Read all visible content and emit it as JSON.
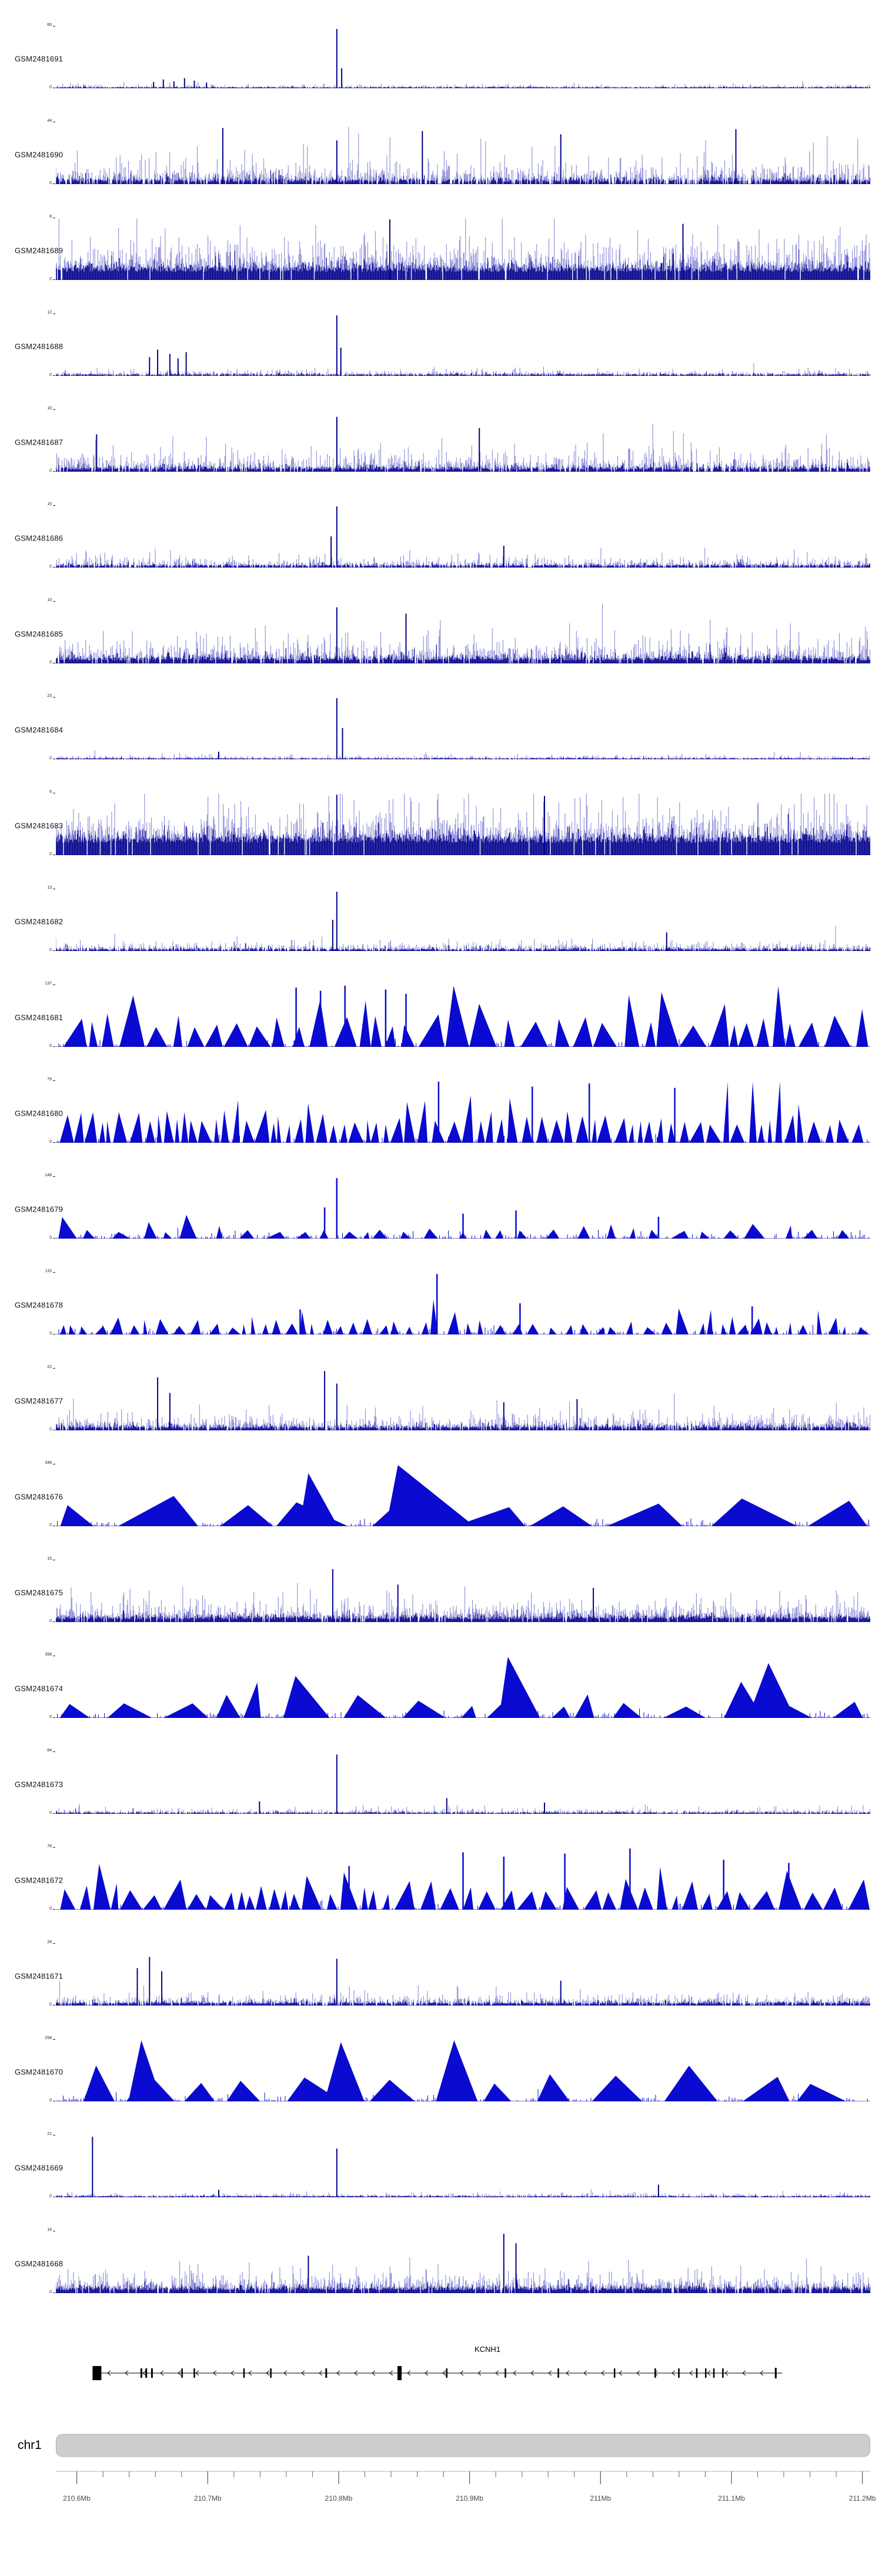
{
  "colors": {
    "spike_light": "#8C8CD8",
    "spike_dark": "#00008B",
    "peak_fill": "#0A0AD0",
    "gene": "#000000",
    "ideogram_fill": "#CDCDCD",
    "ideogram_border": "#B2B2B2",
    "axis_tick": "#666666",
    "axis_text": "#4A4A4A",
    "background": "#FFFFFF"
  },
  "chromosome": {
    "label": "chr1"
  },
  "chart_data": {
    "type": "area",
    "subtype": "genome-coverage-tracks",
    "title": "",
    "axis": {
      "unit": "Mb",
      "start_mb": 210.584,
      "end_mb": 211.206,
      "minor_step_mb": 0.02,
      "major_ticks_mb": [
        210.6,
        210.7,
        210.8,
        210.9,
        211.0,
        211.1,
        211.2
      ],
      "tick_labels": [
        "210.6Mb",
        "210.7Mb",
        "210.8Mb",
        "210.9Mb",
        "211Mb",
        "211.1Mb",
        "211.2Mb"
      ]
    },
    "gene_track": {
      "gene": "KCNH1",
      "strand": "-",
      "span_frac": [
        0.0505,
        0.892
      ],
      "exons": [
        {
          "f": 0.0505,
          "w": 15,
          "h": 24
        },
        {
          "f": 0.105,
          "w": 3,
          "h": 16
        },
        {
          "f": 0.111,
          "w": 3,
          "h": 16
        },
        {
          "f": 0.118,
          "w": 3,
          "h": 16
        },
        {
          "f": 0.155,
          "w": 2.5,
          "h": 16
        },
        {
          "f": 0.17,
          "w": 2.5,
          "h": 16
        },
        {
          "f": 0.231,
          "w": 2.5,
          "h": 16
        },
        {
          "f": 0.264,
          "w": 2.5,
          "h": 16
        },
        {
          "f": 0.332,
          "w": 3,
          "h": 16
        },
        {
          "f": 0.422,
          "w": 7,
          "h": 24
        },
        {
          "f": 0.48,
          "w": 2.5,
          "h": 16
        },
        {
          "f": 0.552,
          "w": 2.5,
          "h": 16
        },
        {
          "f": 0.617,
          "w": 2.5,
          "h": 16
        },
        {
          "f": 0.686,
          "w": 2.5,
          "h": 16
        },
        {
          "f": 0.736,
          "w": 2.5,
          "h": 16
        },
        {
          "f": 0.765,
          "w": 2.5,
          "h": 16
        },
        {
          "f": 0.787,
          "w": 2.5,
          "h": 16
        },
        {
          "f": 0.798,
          "w": 2.5,
          "h": 16
        },
        {
          "f": 0.808,
          "w": 2.5,
          "h": 16
        },
        {
          "f": 0.819,
          "w": 2.5,
          "h": 16
        },
        {
          "f": 0.884,
          "w": 3,
          "h": 18
        }
      ]
    },
    "tracks": [
      {
        "label": "GSM2481691",
        "ymax": 60,
        "ymin": 0,
        "style": "spikes",
        "seed": 1,
        "density": 0.8,
        "lbase": 0.012,
        "lvar": 0.03,
        "dbase": 0.008,
        "dvar": 0.015,
        "extras": [
          {
            "f": 0.345,
            "h": 0.95
          },
          {
            "f": 0.351,
            "h": 0.32
          },
          {
            "f": 0.12,
            "h": 0.1
          },
          {
            "f": 0.132,
            "h": 0.14
          },
          {
            "f": 0.145,
            "h": 0.11
          },
          {
            "f": 0.158,
            "h": 0.16
          },
          {
            "f": 0.17,
            "h": 0.12
          },
          {
            "f": 0.185,
            "h": 0.09
          }
        ]
      },
      {
        "label": "GSM2481690",
        "ymax": 44,
        "ymin": 0,
        "style": "spikes",
        "seed": 2,
        "density": 0.8,
        "lbase": 0.06,
        "lvar": 0.22,
        "dbase": 0.035,
        "dvar": 0.07,
        "extras": [
          {
            "f": 0.205,
            "h": 0.9
          },
          {
            "f": 0.345,
            "h": 0.7
          },
          {
            "f": 0.45,
            "h": 0.85
          },
          {
            "f": 0.62,
            "h": 0.8
          },
          {
            "f": 0.835,
            "h": 0.88
          }
        ]
      },
      {
        "label": "GSM2481689",
        "ymax": 8,
        "ymin": 0,
        "style": "spikes",
        "seed": 3,
        "density": 0.95,
        "lbase": 0.18,
        "lvar": 0.3,
        "dbase": 0.13,
        "dvar": 0.14,
        "extras": [
          {
            "f": 0.41,
            "h": 0.97
          },
          {
            "f": 0.77,
            "h": 0.9
          }
        ]
      },
      {
        "label": "GSM2481688",
        "ymax": 12,
        "ymin": 0,
        "style": "spikes",
        "seed": 4,
        "density": 0.8,
        "lbase": 0.018,
        "lvar": 0.05,
        "dbase": 0.012,
        "dvar": 0.025,
        "extras": [
          {
            "f": 0.345,
            "h": 0.97
          },
          {
            "f": 0.35,
            "h": 0.45
          },
          {
            "f": 0.115,
            "h": 0.3
          },
          {
            "f": 0.125,
            "h": 0.42
          },
          {
            "f": 0.14,
            "h": 0.35
          },
          {
            "f": 0.15,
            "h": 0.28
          },
          {
            "f": 0.16,
            "h": 0.38
          }
        ]
      },
      {
        "label": "GSM2481687",
        "ymax": 10,
        "ymin": 0,
        "style": "spikes",
        "seed": 5,
        "density": 0.85,
        "lbase": 0.05,
        "lvar": 0.18,
        "dbase": 0.03,
        "dvar": 0.07,
        "extras": [
          {
            "f": 0.345,
            "h": 0.88
          },
          {
            "f": 0.05,
            "h": 0.6
          },
          {
            "f": 0.52,
            "h": 0.7
          }
        ]
      },
      {
        "label": "GSM2481686",
        "ymax": 15,
        "ymin": 0,
        "style": "spikes",
        "seed": 6,
        "density": 0.8,
        "lbase": 0.03,
        "lvar": 0.1,
        "dbase": 0.02,
        "dvar": 0.04,
        "extras": [
          {
            "f": 0.345,
            "h": 0.98
          },
          {
            "f": 0.338,
            "h": 0.5
          },
          {
            "f": 0.55,
            "h": 0.35
          }
        ]
      },
      {
        "label": "GSM2481685",
        "ymax": 10,
        "ymin": 0,
        "style": "spikes",
        "seed": 7,
        "density": 0.9,
        "lbase": 0.07,
        "lvar": 0.22,
        "dbase": 0.045,
        "dvar": 0.09,
        "extras": [
          {
            "f": 0.345,
            "h": 0.9
          },
          {
            "f": 0.43,
            "h": 0.8
          }
        ]
      },
      {
        "label": "GSM2481684",
        "ymax": 23,
        "ymin": 0,
        "style": "spikes",
        "seed": 8,
        "density": 0.8,
        "lbase": 0.012,
        "lvar": 0.03,
        "dbase": 0.008,
        "dvar": 0.016,
        "extras": [
          {
            "f": 0.345,
            "h": 0.98
          },
          {
            "f": 0.352,
            "h": 0.5
          },
          {
            "f": 0.2,
            "h": 0.12
          }
        ]
      },
      {
        "label": "GSM2481683",
        "ymax": 6,
        "ymin": 0,
        "style": "spikes",
        "seed": 9,
        "density": 0.97,
        "lbase": 0.25,
        "lvar": 0.32,
        "dbase": 0.2,
        "dvar": 0.18,
        "extras": [
          {
            "f": 0.345,
            "h": 0.97
          },
          {
            "f": 0.6,
            "h": 0.95
          }
        ]
      },
      {
        "label": "GSM2481682",
        "ymax": 13,
        "ymin": 0,
        "style": "spikes",
        "seed": 10,
        "density": 0.8,
        "lbase": 0.025,
        "lvar": 0.08,
        "dbase": 0.015,
        "dvar": 0.035,
        "extras": [
          {
            "f": 0.345,
            "h": 0.95
          },
          {
            "f": 0.34,
            "h": 0.5
          },
          {
            "f": 0.75,
            "h": 0.3
          }
        ]
      },
      {
        "label": "GSM2481681",
        "ymax": 137,
        "ymin": 0,
        "style": "peaks",
        "seed": 11,
        "gmin": 0,
        "gmax": 14,
        "wmin": 14,
        "wmax": 48,
        "hbase": 0.3,
        "hvar": 0.35,
        "extras": [
          {
            "f": 0.295,
            "h": 0.95
          },
          {
            "f": 0.325,
            "h": 0.9
          },
          {
            "f": 0.355,
            "h": 0.98
          },
          {
            "f": 0.405,
            "h": 0.92
          },
          {
            "f": 0.43,
            "h": 0.85
          }
        ]
      },
      {
        "label": "GSM2481680",
        "ymax": 79,
        "ymin": 0,
        "style": "peaks",
        "seed": 12,
        "gmin": 0,
        "gmax": 8,
        "wmin": 7,
        "wmax": 26,
        "hbase": 0.28,
        "hvar": 0.38,
        "extras": [
          {
            "f": 0.47,
            "h": 0.98
          },
          {
            "f": 0.585,
            "h": 0.9
          },
          {
            "f": 0.655,
            "h": 0.95
          },
          {
            "f": 0.76,
            "h": 0.88
          }
        ]
      },
      {
        "label": "GSM2481679",
        "ymax": 148,
        "ymin": 0,
        "style": "peaks",
        "seed": 13,
        "gmin": 4,
        "gmax": 36,
        "wmin": 10,
        "wmax": 36,
        "hbase": 0.1,
        "hvar": 0.13,
        "extras": [
          {
            "f": 0.345,
            "h": 0.97
          },
          {
            "f": 0.33,
            "h": 0.5
          },
          {
            "f": 0.5,
            "h": 0.4
          },
          {
            "f": 0.565,
            "h": 0.45
          },
          {
            "f": 0.74,
            "h": 0.35
          }
        ]
      },
      {
        "label": "GSM2481678",
        "ymax": 115,
        "ymin": 0,
        "style": "peaks",
        "seed": 14,
        "gmin": 2,
        "gmax": 20,
        "wmin": 6,
        "wmax": 22,
        "hbase": 0.11,
        "hvar": 0.15,
        "extras": [
          {
            "f": 0.468,
            "h": 0.97
          },
          {
            "f": 0.3,
            "h": 0.4
          },
          {
            "f": 0.57,
            "h": 0.5
          },
          {
            "f": 0.855,
            "h": 0.45
          }
        ]
      },
      {
        "label": "GSM2481677",
        "ymax": 22,
        "ymin": 0,
        "style": "spikes",
        "seed": 15,
        "density": 0.85,
        "lbase": 0.05,
        "lvar": 0.15,
        "dbase": 0.03,
        "dvar": 0.06,
        "extras": [
          {
            "f": 0.125,
            "h": 0.85
          },
          {
            "f": 0.14,
            "h": 0.6
          },
          {
            "f": 0.33,
            "h": 0.95
          },
          {
            "f": 0.345,
            "h": 0.75
          },
          {
            "f": 0.55,
            "h": 0.45
          },
          {
            "f": 0.64,
            "h": 0.5
          }
        ]
      },
      {
        "label": "GSM2481676",
        "ymax": 348,
        "ymin": 0,
        "style": "peaks",
        "seed": 16,
        "gmin": 5,
        "gmax": 55,
        "wmin": 55,
        "wmax": 150,
        "hbase": 0.3,
        "hvar": 0.4,
        "big": [
          {
            "f": 0.31,
            "wl": 15,
            "wr": 50,
            "h": 0.85
          },
          {
            "f": 0.42,
            "wl": 20,
            "wr": 130,
            "h": 0.98
          }
        ],
        "extras": []
      },
      {
        "label": "GSM2481675",
        "ymax": 15,
        "ymin": 0,
        "style": "spikes",
        "seed": 17,
        "density": 0.9,
        "lbase": 0.07,
        "lvar": 0.18,
        "dbase": 0.045,
        "dvar": 0.075,
        "extras": [
          {
            "f": 0.34,
            "h": 0.85
          },
          {
            "f": 0.42,
            "h": 0.6
          },
          {
            "f": 0.66,
            "h": 0.55
          }
        ]
      },
      {
        "label": "GSM2481674",
        "ymax": 358,
        "ymin": 0,
        "style": "peaks",
        "seed": 18,
        "gmin": 3,
        "gmax": 40,
        "wmin": 22,
        "wmax": 80,
        "hbase": 0.18,
        "hvar": 0.28,
        "big": [
          {
            "f": 0.555,
            "wl": 15,
            "wr": 55,
            "h": 0.98
          },
          {
            "f": 0.875,
            "wl": 35,
            "wr": 45,
            "h": 0.88
          }
        ],
        "extras": []
      },
      {
        "label": "GSM2481673",
        "ymax": 84,
        "ymin": 0,
        "style": "spikes",
        "seed": 19,
        "density": 0.8,
        "lbase": 0.015,
        "lvar": 0.045,
        "dbase": 0.01,
        "dvar": 0.022,
        "extras": [
          {
            "f": 0.345,
            "h": 0.95
          },
          {
            "f": 0.25,
            "h": 0.2
          },
          {
            "f": 0.48,
            "h": 0.25
          },
          {
            "f": 0.6,
            "h": 0.18
          }
        ]
      },
      {
        "label": "GSM2481672",
        "ymax": 76,
        "ymin": 0,
        "style": "peaks",
        "seed": 20,
        "gmin": 0,
        "gmax": 10,
        "wmin": 9,
        "wmax": 40,
        "hbase": 0.22,
        "hvar": 0.28,
        "extras": [
          {
            "f": 0.36,
            "h": 0.7
          },
          {
            "f": 0.5,
            "h": 0.92
          },
          {
            "f": 0.55,
            "h": 0.85
          },
          {
            "f": 0.625,
            "h": 0.9
          },
          {
            "f": 0.705,
            "h": 0.98
          },
          {
            "f": 0.82,
            "h": 0.8
          },
          {
            "f": 0.9,
            "h": 0.75
          }
        ]
      },
      {
        "label": "GSM2481671",
        "ymax": 26,
        "ymin": 0,
        "style": "spikes",
        "seed": 21,
        "density": 0.85,
        "lbase": 0.035,
        "lvar": 0.1,
        "dbase": 0.022,
        "dvar": 0.045,
        "extras": [
          {
            "f": 0.1,
            "h": 0.6
          },
          {
            "f": 0.115,
            "h": 0.78
          },
          {
            "f": 0.13,
            "h": 0.55
          },
          {
            "f": 0.345,
            "h": 0.75
          },
          {
            "f": 0.62,
            "h": 0.4
          }
        ]
      },
      {
        "label": "GSM2481670",
        "ymax": 258,
        "ymin": 0,
        "style": "peaks",
        "seed": 22,
        "gmin": 8,
        "gmax": 50,
        "wmin": 28,
        "wmax": 95,
        "hbase": 0.28,
        "hvar": 0.32,
        "big": [
          {
            "f": 0.105,
            "wl": 22,
            "wr": 35,
            "h": 0.98
          },
          {
            "f": 0.35,
            "wl": 28,
            "wr": 40,
            "h": 0.95
          }
        ],
        "extras": []
      },
      {
        "label": "GSM2481669",
        "ymax": 21,
        "ymin": 0,
        "style": "spikes",
        "seed": 23,
        "density": 0.8,
        "lbase": 0.013,
        "lvar": 0.035,
        "dbase": 0.009,
        "dvar": 0.018,
        "extras": [
          {
            "f": 0.045,
            "h": 0.97
          },
          {
            "f": 0.345,
            "h": 0.78
          },
          {
            "f": 0.74,
            "h": 0.2
          },
          {
            "f": 0.2,
            "h": 0.12
          }
        ]
      },
      {
        "label": "GSM2481668",
        "ymax": 14,
        "ymin": 0,
        "style": "spikes",
        "seed": 24,
        "density": 0.9,
        "lbase": 0.07,
        "lvar": 0.18,
        "dbase": 0.045,
        "dvar": 0.08,
        "extras": [
          {
            "f": 0.55,
            "h": 0.95
          },
          {
            "f": 0.565,
            "h": 0.8
          },
          {
            "f": 0.31,
            "h": 0.6
          }
        ]
      }
    ]
  }
}
